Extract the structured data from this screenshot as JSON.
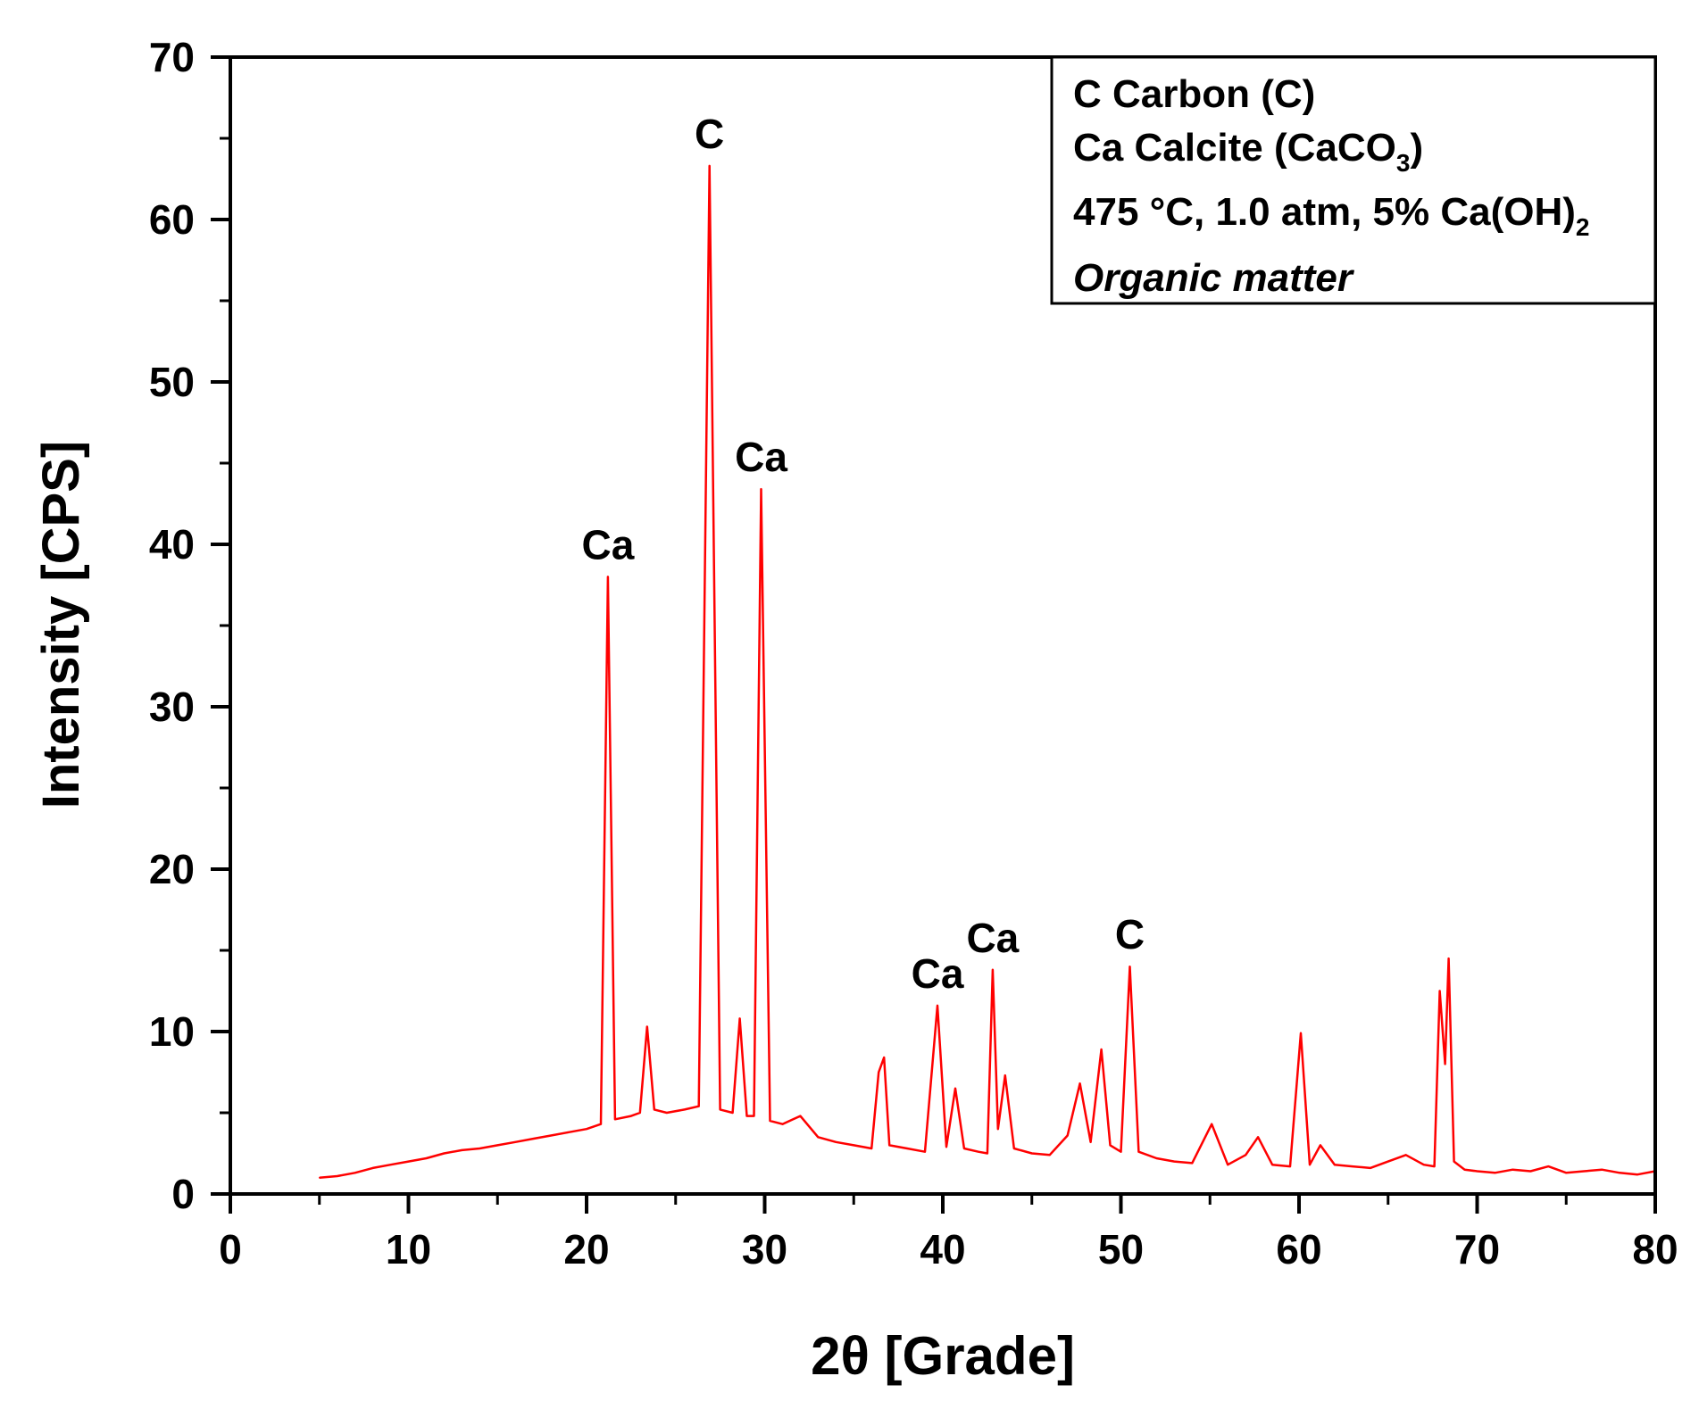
{
  "chart_data": {
    "type": "line",
    "xlabel": "2θ [Grade]",
    "ylabel": "Intensity [CPS]",
    "xlim": [
      0,
      80
    ],
    "ylim": [
      0,
      70
    ],
    "x_ticks": [
      0,
      10,
      20,
      30,
      40,
      50,
      60,
      70,
      80
    ],
    "y_ticks": [
      0,
      10,
      20,
      30,
      40,
      50,
      60,
      70
    ],
    "grid": false,
    "legend_position": "top-right",
    "line_color": "#ff0000",
    "legend": {
      "line1": "C Carbon (C)",
      "line2_main": "Ca Calcite (CaCO",
      "line2_sub": "3",
      "line2_end": ")",
      "line3_main": "475 °C, 1.0 atm, 5% Ca(OH)",
      "line3_sub": "2",
      "line4": "Organic matter"
    },
    "series": [
      {
        "x": [
          5,
          6,
          7,
          8,
          9,
          10,
          11,
          12,
          13,
          14,
          15,
          16,
          17,
          18,
          19,
          20,
          20.8,
          21.2,
          21.6,
          22.5,
          23.0,
          23.4,
          23.8,
          24.5,
          25.5,
          26.3,
          26.9,
          27.5,
          28.2,
          28.6,
          29.0,
          29.4,
          29.8,
          30.3,
          31.0,
          32.0,
          33.0,
          34.0,
          35.0,
          36.0,
          36.4,
          36.7,
          37.0,
          38.0,
          39.0,
          39.7,
          40.2,
          40.7,
          41.2,
          42.0,
          42.5,
          42.8,
          43.1,
          43.5,
          44.0,
          45.0,
          46.0,
          47.0,
          47.7,
          48.3,
          48.9,
          49.4,
          50.0,
          50.5,
          51.0,
          52.0,
          53.0,
          54.0,
          55.1,
          56.0,
          57.0,
          57.7,
          58.5,
          59.5,
          60.1,
          60.6,
          61.2,
          62.0,
          63.0,
          64.0,
          65.0,
          66.0,
          67.0,
          67.6,
          67.9,
          68.2,
          68.4,
          68.7,
          69.3,
          70.0,
          71.0,
          72.0,
          73.0,
          74.0,
          75.0,
          76.0,
          77.0,
          78.0,
          79.0,
          80.0
        ],
        "y": [
          1.0,
          1.1,
          1.3,
          1.6,
          1.8,
          2.0,
          2.2,
          2.5,
          2.7,
          2.8,
          3.0,
          3.2,
          3.4,
          3.6,
          3.8,
          4.0,
          4.3,
          38.0,
          4.6,
          4.8,
          5.0,
          10.3,
          5.2,
          5.0,
          5.2,
          5.4,
          63.3,
          5.2,
          5.0,
          10.8,
          4.8,
          4.8,
          43.4,
          4.5,
          4.3,
          4.8,
          3.5,
          3.2,
          3.0,
          2.8,
          7.5,
          8.4,
          3.0,
          2.8,
          2.6,
          11.6,
          2.9,
          6.5,
          2.8,
          2.6,
          2.5,
          13.8,
          4.0,
          7.3,
          2.8,
          2.5,
          2.4,
          3.6,
          6.8,
          3.2,
          8.9,
          3.0,
          2.6,
          14.0,
          2.6,
          2.2,
          2.0,
          1.9,
          4.3,
          1.8,
          2.4,
          3.5,
          1.8,
          1.7,
          9.9,
          1.8,
          3.0,
          1.8,
          1.7,
          1.6,
          2.0,
          2.4,
          1.8,
          1.7,
          12.5,
          8.0,
          14.5,
          2.0,
          1.5,
          1.4,
          1.3,
          1.5,
          1.4,
          1.7,
          1.3,
          1.4,
          1.5,
          1.3,
          1.2,
          1.4
        ]
      }
    ],
    "annotations": [
      {
        "text": "Ca",
        "x": 21.2,
        "y": 38.0
      },
      {
        "text": "C",
        "x": 26.9,
        "y": 63.3
      },
      {
        "text": "Ca",
        "x": 29.8,
        "y": 43.4
      },
      {
        "text": "Ca",
        "x": 39.7,
        "y": 11.6
      },
      {
        "text": "Ca",
        "x": 42.8,
        "y": 13.8
      },
      {
        "text": "C",
        "x": 50.5,
        "y": 14.0
      }
    ]
  }
}
